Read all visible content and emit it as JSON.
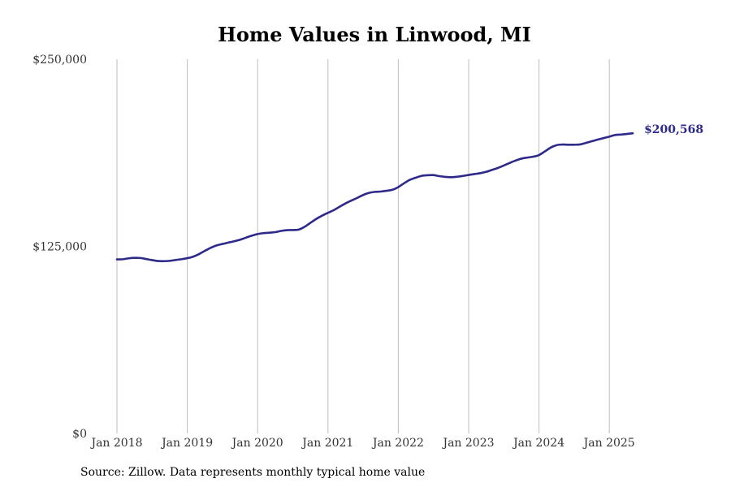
{
  "chart_data": {
    "type": "line",
    "title": "Home Values in Linwood, MI",
    "xlabel": "",
    "ylabel": "",
    "ylim": [
      0,
      250000
    ],
    "y_ticks": [
      {
        "value": 0,
        "label": "$0"
      },
      {
        "value": 125000,
        "label": "$125,000"
      },
      {
        "value": 250000,
        "label": "$250,000"
      }
    ],
    "x_ticks": [
      "Jan 2018",
      "Jan 2019",
      "Jan 2020",
      "Jan 2021",
      "Jan 2022",
      "Jan 2023",
      "Jan 2024",
      "Jan 2025"
    ],
    "grid": "vertical",
    "series": [
      {
        "color": "#2e2a8a",
        "end_label": "$200,568",
        "x": [
          "2018-01",
          "2018-02",
          "2018-03",
          "2018-04",
          "2018-05",
          "2018-06",
          "2018-07",
          "2018-08",
          "2018-09",
          "2018-10",
          "2018-11",
          "2018-12",
          "2019-01",
          "2019-02",
          "2019-03",
          "2019-04",
          "2019-05",
          "2019-06",
          "2019-07",
          "2019-08",
          "2019-09",
          "2019-10",
          "2019-11",
          "2019-12",
          "2020-01",
          "2020-02",
          "2020-03",
          "2020-04",
          "2020-05",
          "2020-06",
          "2020-07",
          "2020-08",
          "2020-09",
          "2020-10",
          "2020-11",
          "2020-12",
          "2021-01",
          "2021-02",
          "2021-03",
          "2021-04",
          "2021-05",
          "2021-06",
          "2021-07",
          "2021-08",
          "2021-09",
          "2021-10",
          "2021-11",
          "2021-12",
          "2022-01",
          "2022-02",
          "2022-03",
          "2022-04",
          "2022-05",
          "2022-06",
          "2022-07",
          "2022-08",
          "2022-09",
          "2022-10",
          "2022-11",
          "2022-12",
          "2023-01",
          "2023-02",
          "2023-03",
          "2023-04",
          "2023-05",
          "2023-06",
          "2023-07",
          "2023-08",
          "2023-09",
          "2023-10",
          "2023-11",
          "2023-12",
          "2024-01",
          "2024-02",
          "2024-03",
          "2024-04",
          "2024-05",
          "2024-06",
          "2024-07",
          "2024-08",
          "2024-09",
          "2024-10",
          "2024-11",
          "2024-12",
          "2025-01",
          "2025-02",
          "2025-03",
          "2025-04",
          "2025-05"
        ],
        "values": [
          116300,
          116400,
          117000,
          117300,
          117200,
          116500,
          115800,
          115200,
          115100,
          115300,
          115900,
          116400,
          117100,
          118100,
          119800,
          122000,
          124000,
          125600,
          126600,
          127500,
          128400,
          129400,
          130800,
          132100,
          133200,
          133800,
          134100,
          134500,
          135300,
          135800,
          135900,
          136200,
          138000,
          140700,
          143300,
          145500,
          147400,
          149200,
          151500,
          153700,
          155600,
          157400,
          159300,
          160700,
          161400,
          161600,
          162100,
          162800,
          164600,
          167200,
          169500,
          170900,
          172100,
          172500,
          172600,
          171900,
          171400,
          171200,
          171500,
          172000,
          172700,
          173300,
          173900,
          174800,
          176100,
          177400,
          179000,
          180700,
          182300,
          183600,
          184300,
          184900,
          186000,
          188400,
          191000,
          192600,
          193000,
          192900,
          192900,
          193100,
          194100,
          195200,
          196300,
          197300,
          198300,
          199400,
          199700,
          200100,
          200568
        ]
      }
    ]
  },
  "source": "Source: Zillow. Data represents monthly typical home value"
}
